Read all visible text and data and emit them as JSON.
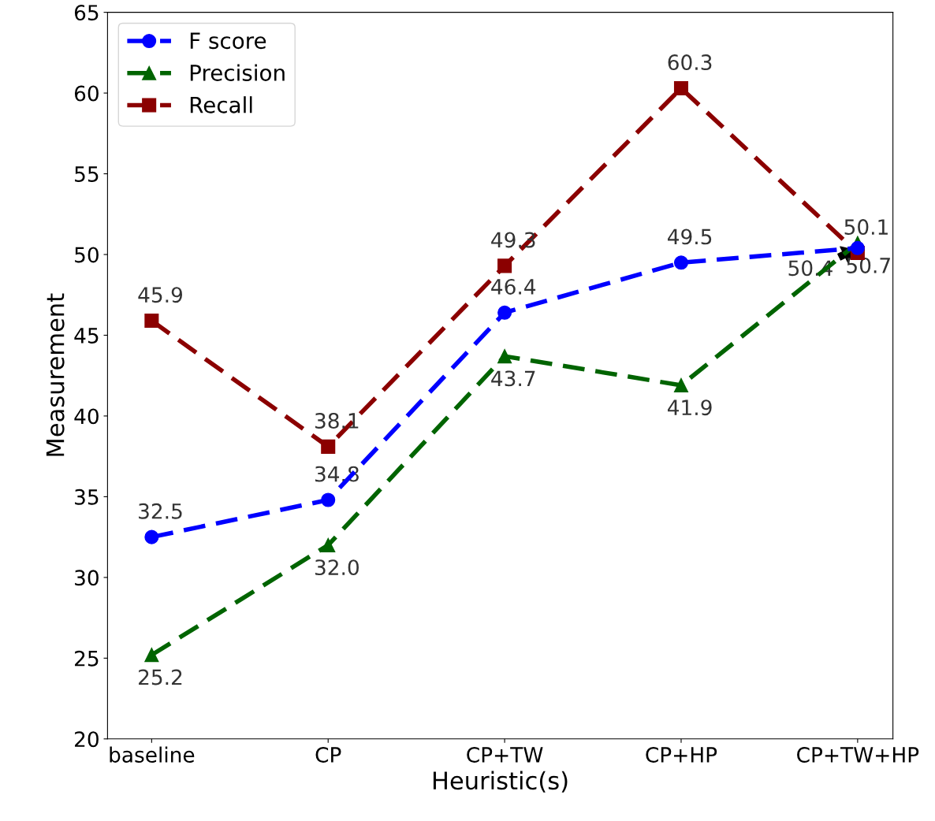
{
  "chart_data": {
    "type": "line",
    "xlabel": "Heuristic(s)",
    "ylabel": "Measurement",
    "categories": [
      "baseline",
      "CP",
      "CP+TW",
      "CP+HP",
      "CP+TW+HP"
    ],
    "series": [
      {
        "name": "F score",
        "color": "#0000ff",
        "marker": "circle",
        "line_style": "dashed",
        "values": [
          32.5,
          34.8,
          46.4,
          49.5,
          50.4
        ],
        "value_labels": [
          "32.5",
          "34.8",
          "46.4",
          "49.5",
          "50.4"
        ]
      },
      {
        "name": "Precision",
        "color": "#006400",
        "marker": "triangle",
        "line_style": "dashed",
        "values": [
          25.2,
          32.0,
          43.7,
          41.9,
          50.7
        ],
        "value_labels": [
          "25.2",
          "32.0",
          "43.7",
          "41.9",
          "50.7"
        ]
      },
      {
        "name": "Recall",
        "color": "#8b0000",
        "marker": "square",
        "line_style": "dashed",
        "values": [
          45.9,
          38.1,
          49.3,
          60.3,
          50.1
        ],
        "value_labels": [
          "45.9",
          "38.1",
          "49.3",
          "60.3",
          "50.1"
        ]
      }
    ],
    "ylim": [
      20,
      65
    ],
    "yticks": [
      20,
      25,
      30,
      35,
      40,
      45,
      50,
      55,
      60,
      65
    ],
    "grid": false,
    "legend": "top left"
  }
}
